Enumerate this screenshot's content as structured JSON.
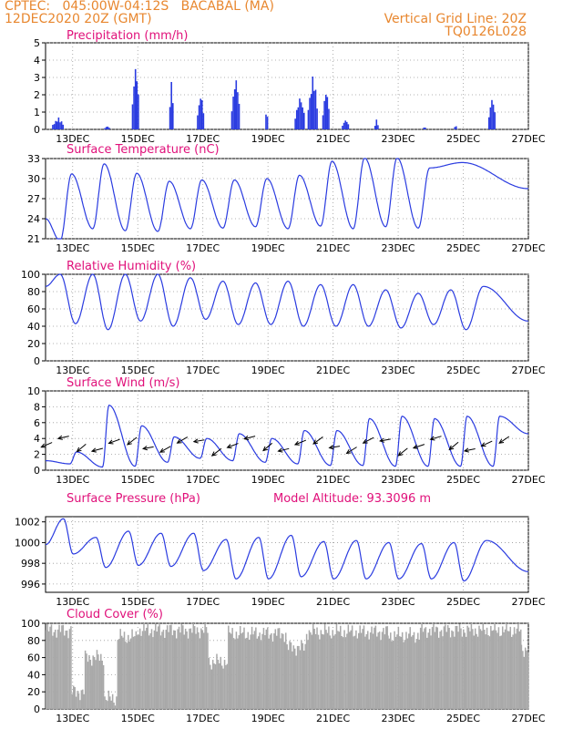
{
  "header": {
    "line1": "CPTEC:   045:00W-04:12S   BACABAL (MA)",
    "line2": "12DEC2020 20Z (GMT)",
    "grid_note": "Vertical Grid Line: 20Z",
    "code": "TQ0126L028"
  },
  "x_ticks": [
    "13DEC",
    "15DEC",
    "17DEC",
    "19DEC",
    "21DEC",
    "23DEC",
    "25DEC",
    "27DEC"
  ],
  "colors": {
    "series": "#2a3be0",
    "title": "#e0107a",
    "header": "#e8872f",
    "cloud": "#a9a9a9",
    "grid": "#9a9a9a"
  },
  "chart_data": [
    {
      "type": "bar",
      "title": "Precipitation (mm/h)",
      "ylim": [
        0,
        5
      ],
      "yticks": [
        "0",
        "1",
        "2",
        "3",
        "4",
        "5"
      ],
      "x_units": "days since 12DEC2020 00Z",
      "bursts": [
        {
          "x": [
            0.2,
            0.55
          ],
          "peak": 0.7
        },
        {
          "x": [
            1.8,
            1.95
          ],
          "peak": 0.2
        },
        {
          "x": [
            2.65,
            2.85
          ],
          "peak": 4.0
        },
        {
          "x": [
            3.8,
            3.9
          ],
          "peak": 3.1
        },
        {
          "x": [
            4.65,
            4.85
          ],
          "peak": 2.2
        },
        {
          "x": [
            5.7,
            5.95
          ],
          "peak": 3.2
        },
        {
          "x": [
            6.75,
            6.8
          ],
          "peak": 1.6
        },
        {
          "x": [
            7.65,
            7.95
          ],
          "peak": 2.0
        },
        {
          "x": [
            8.05,
            8.35
          ],
          "peak": 3.3
        },
        {
          "x": [
            8.5,
            8.7
          ],
          "peak": 2.5
        },
        {
          "x": [
            9.1,
            9.3
          ],
          "peak": 0.6
        },
        {
          "x": [
            10.1,
            10.2
          ],
          "peak": 0.6
        },
        {
          "x": [
            11.6,
            11.65
          ],
          "peak": 0.2
        },
        {
          "x": [
            12.55,
            12.6
          ],
          "peak": 0.3
        },
        {
          "x": [
            13.6,
            13.8
          ],
          "peak": 2.0
        }
      ]
    },
    {
      "type": "line",
      "title": "Surface Temperature (nC)",
      "ylim": [
        21,
        33
      ],
      "yticks": [
        "21",
        "24",
        "27",
        "30",
        "33"
      ],
      "max": [
        30.7,
        32.2,
        30.8,
        29.6,
        29.8,
        29.8,
        30.0,
        30.5,
        32.6,
        33.1,
        33.1,
        31.6,
        32.4
      ],
      "min": [
        20.7,
        22.5,
        22.2,
        22.1,
        22.5,
        22.6,
        22.8,
        22.5,
        22.9,
        22.5,
        22.8,
        22.6
      ]
    },
    {
      "type": "line",
      "title": "Relative Humidity (%)",
      "ylim": [
        0,
        100
      ],
      "yticks": [
        "0",
        "20",
        "40",
        "60",
        "80",
        "100"
      ],
      "max": [
        100,
        100,
        100,
        100,
        96,
        92,
        90,
        92,
        88,
        88,
        82,
        78,
        82,
        86
      ],
      "min": [
        43,
        36,
        46,
        40,
        48,
        42,
        42,
        40,
        40,
        40,
        38,
        42,
        36
      ],
      "end": 46
    },
    {
      "type": "line",
      "title": "Surface Wind (m/s)",
      "ylim": [
        0,
        10
      ],
      "yticks": [
        "0",
        "2",
        "4",
        "6",
        "8",
        "10"
      ],
      "min": [
        0.8,
        0.4,
        0.5,
        1.0,
        1.5,
        1.2,
        1.0,
        0.8,
        0.6,
        0.6,
        0.5,
        0.5,
        0.5,
        0.5
      ],
      "max": [
        2.3,
        8.2,
        5.6,
        4.2,
        4.0,
        4.6,
        4.0,
        5.0,
        5.0,
        6.5,
        6.8,
        6.5,
        6.8,
        6.8,
        7.0
      ]
    },
    {
      "type": "line",
      "title": "Surface Pressure (hPa)",
      "subtitle": "Model Altitude: 93.3096 m",
      "ylim": [
        995.2,
        1002.5
      ],
      "yticks": [
        "996",
        "998",
        "1000",
        "1002"
      ],
      "max": [
        1002.3,
        1000.5,
        1001.1,
        1000.9,
        1000.9,
        1000.3,
        1000.5,
        1000.7,
        1000.1,
        1000.2,
        1000.0,
        999.9,
        1000.0,
        1000.2
      ],
      "min": [
        998.9,
        997.6,
        997.8,
        997.7,
        997.3,
        996.5,
        996.5,
        996.7,
        996.5,
        996.5,
        996.5,
        996.5,
        996.3
      ],
      "end": 997.2
    },
    {
      "type": "bar",
      "title": "Cloud Cover (%)",
      "ylim": [
        0,
        100
      ],
      "yticks": [
        "0",
        "20",
        "40",
        "60",
        "80",
        "100"
      ],
      "segments": [
        {
          "x": [
            0.0,
            0.8
          ],
          "value": 92
        },
        {
          "x": [
            0.8,
            1.2
          ],
          "value": 20
        },
        {
          "x": [
            1.2,
            1.8
          ],
          "value": 60
        },
        {
          "x": [
            1.8,
            2.2
          ],
          "value": 12
        },
        {
          "x": [
            2.2,
            2.8
          ],
          "value": 84
        },
        {
          "x": [
            2.8,
            5.0
          ],
          "value": 92
        },
        {
          "x": [
            5.0,
            5.6
          ],
          "value": 55
        },
        {
          "x": [
            5.6,
            7.4
          ],
          "value": 88
        },
        {
          "x": [
            7.4,
            8.0
          ],
          "value": 72
        },
        {
          "x": [
            8.0,
            10.5
          ],
          "value": 90
        },
        {
          "x": [
            10.5,
            11.5
          ],
          "value": 86
        },
        {
          "x": [
            11.5,
            14.6
          ],
          "value": 92
        },
        {
          "x": [
            14.6,
            14.8
          ],
          "value": 70
        }
      ]
    }
  ]
}
